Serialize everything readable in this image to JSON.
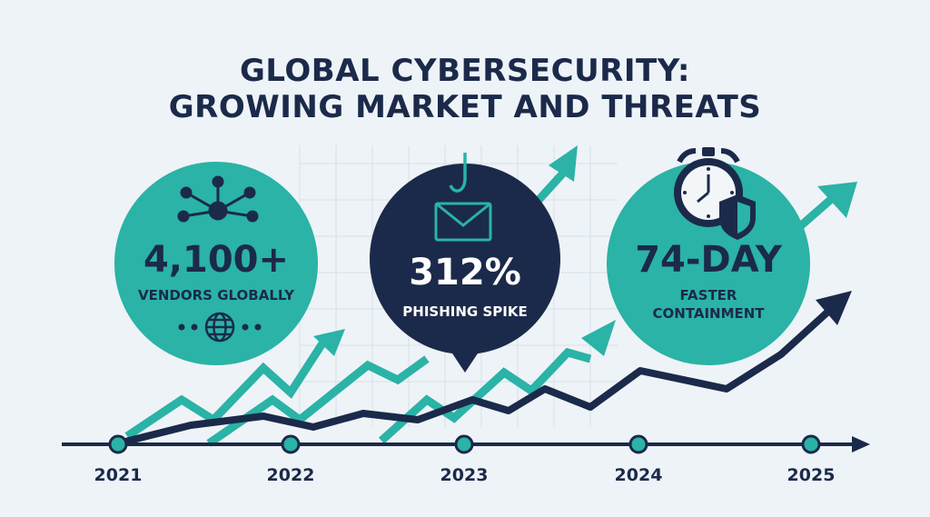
{
  "title": {
    "line1": "GLOBAL CYBERSECURITY:",
    "line2": "GROWING MARKET AND THREATS"
  },
  "stats": [
    {
      "value": "4,100+",
      "label": "VENDORS GLOBALLY"
    },
    {
      "value": "312%",
      "label": "PHISHING SPIKE"
    },
    {
      "value": "74-DAY",
      "label_line1": "FASTER",
      "label_line2": "CONTAINMENT"
    }
  ],
  "timeline": {
    "years": [
      "2021",
      "2022",
      "2023",
      "2024",
      "2025"
    ]
  },
  "icons": [
    "network-icon",
    "globe-icon",
    "phishing-email-icon",
    "fish-hook-icon",
    "stopwatch-icon",
    "shield-icon"
  ],
  "colors": {
    "teal": "#2ab3a6",
    "navy": "#1b2a4a",
    "background": "#eef3f7"
  }
}
